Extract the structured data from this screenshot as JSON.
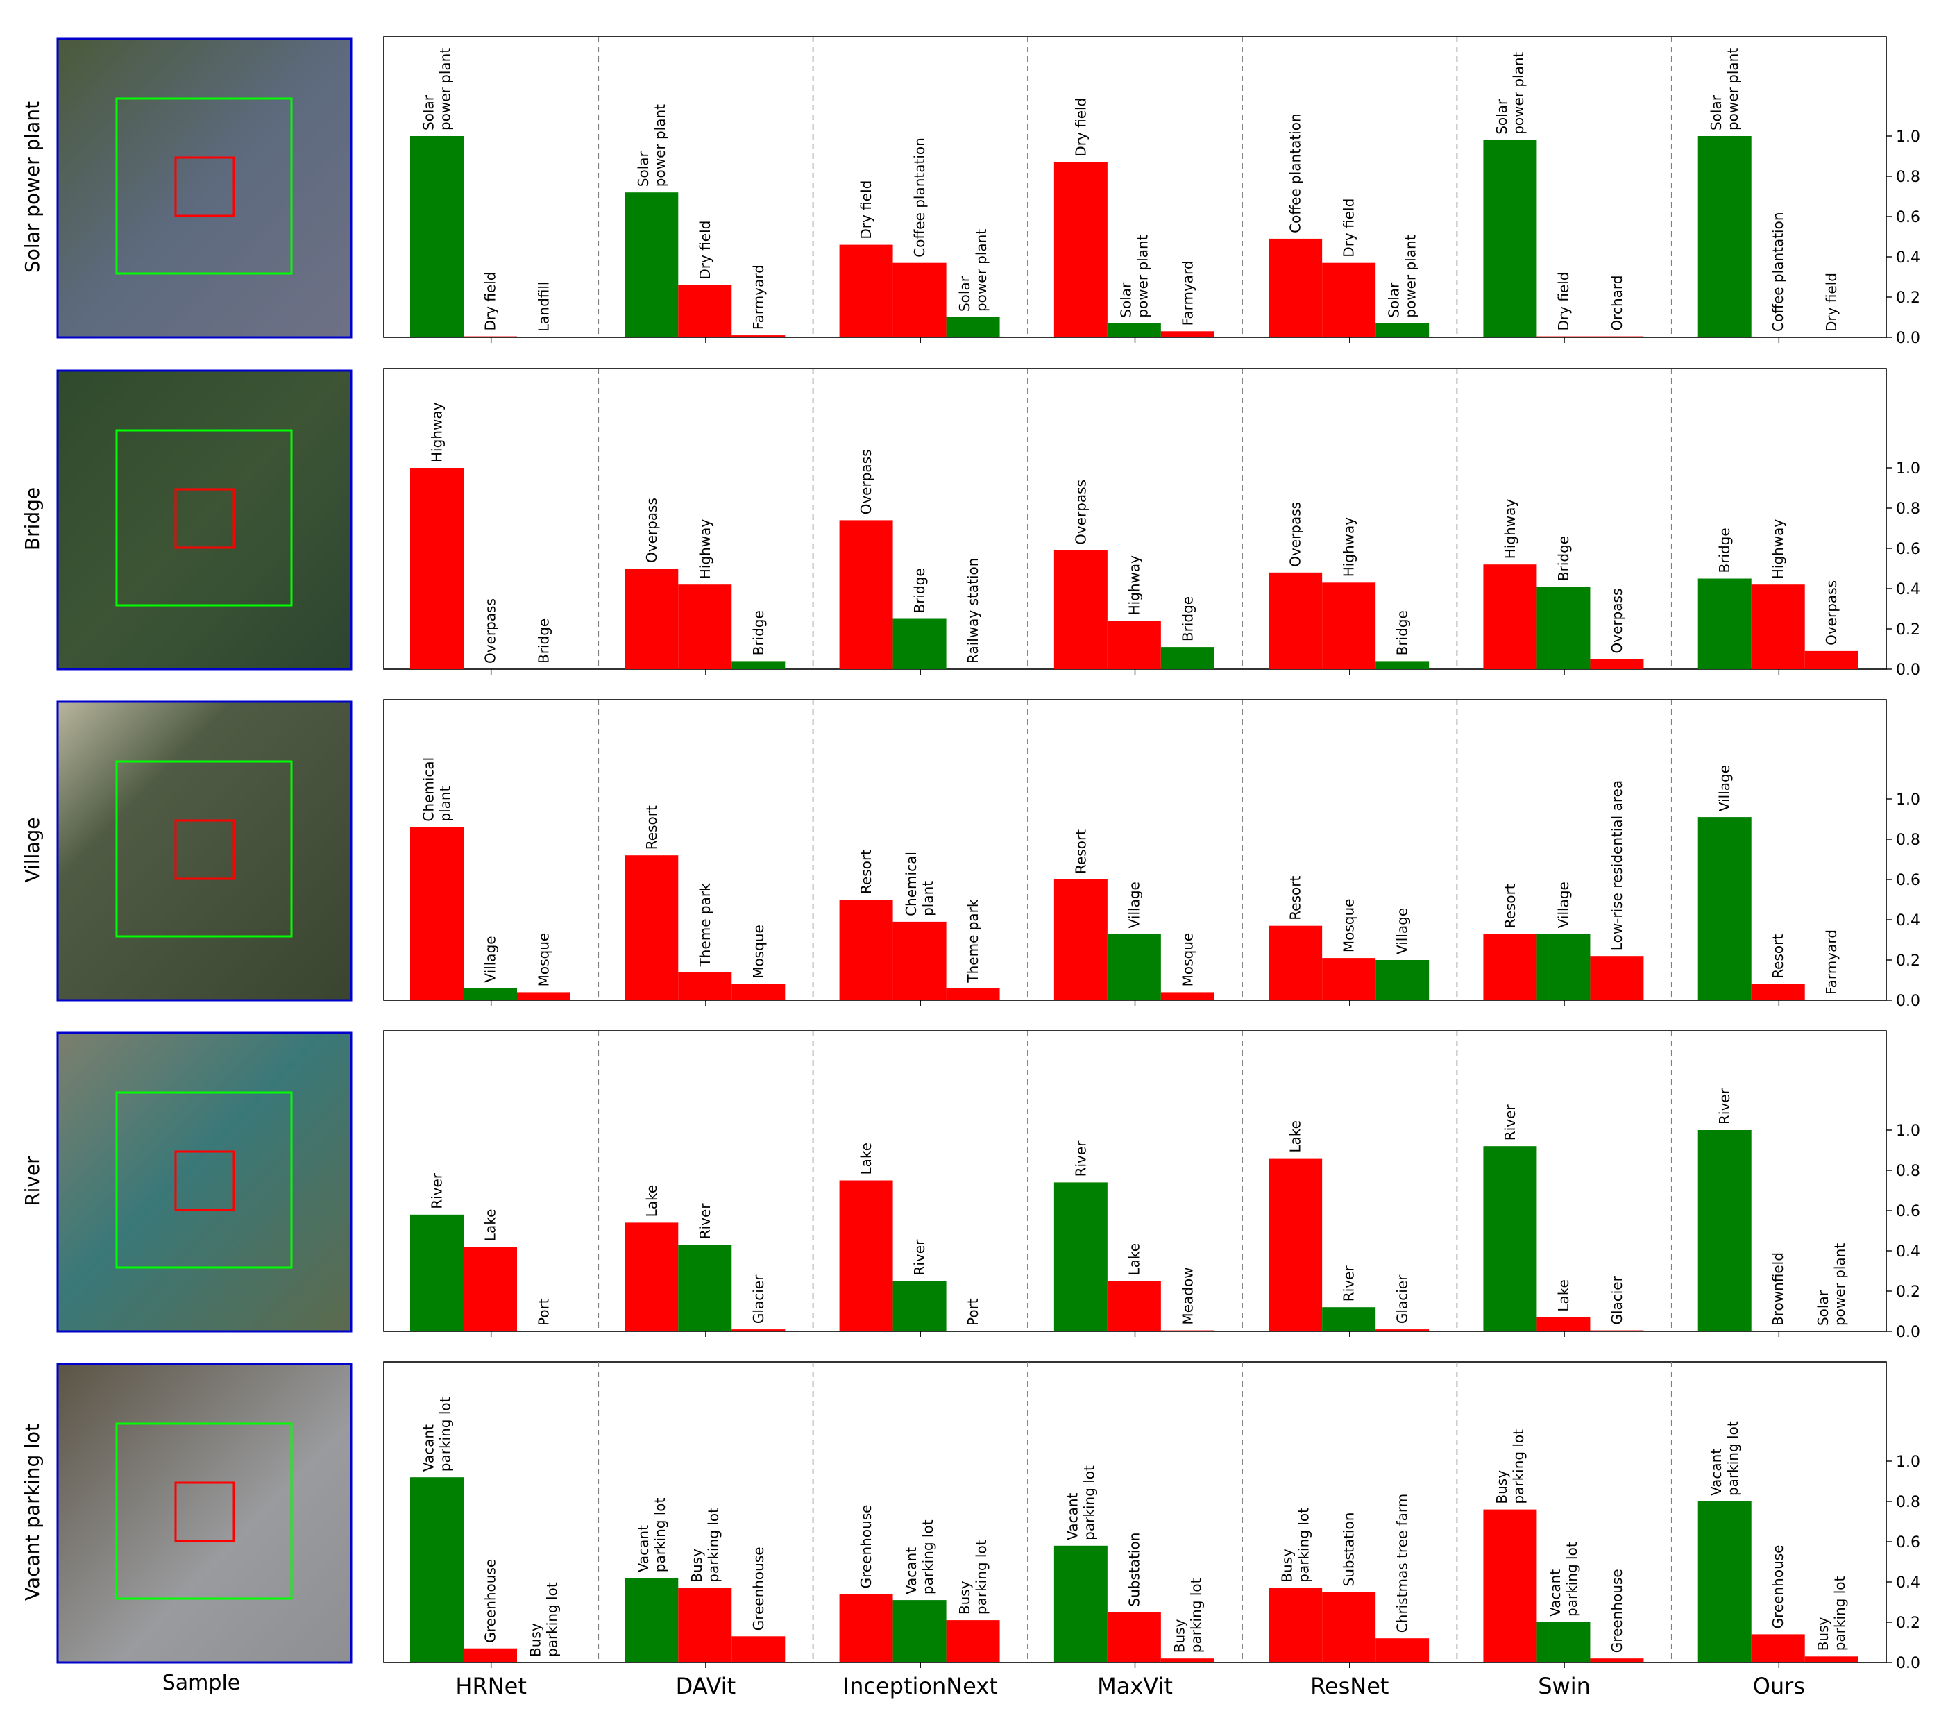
{
  "figure": {
    "sample_label": "Sample",
    "models": [
      "HRNet",
      "DAVit",
      "InceptionNext",
      "MaxVit",
      "ResNet",
      "Swin",
      "Ours"
    ],
    "colors": {
      "correct": "#008000",
      "incorrect": "#ff0000",
      "green_box": "#00ff00",
      "red_box": "#ff0000",
      "frame": "#0000cc"
    },
    "y_ticks": [
      "0.0",
      "0.2",
      "0.4",
      "0.6",
      "0.8",
      "1.0"
    ]
  },
  "chart_data": [
    {
      "type": "bar",
      "row_label": "Solar power plant",
      "ylim": [
        0,
        1.0
      ],
      "y_ticks": [
        0,
        0.2,
        0.4,
        0.6,
        0.8,
        1.0
      ],
      "panels": [
        {
          "model": "HRNet",
          "bars": [
            {
              "label": "Solar\npower plant",
              "value": 1.0,
              "correct": true
            },
            {
              "label": "Dry field",
              "value": 0.005,
              "correct": false
            },
            {
              "label": "Landfill",
              "value": 0.0,
              "correct": false
            }
          ]
        },
        {
          "model": "DAVit",
          "bars": [
            {
              "label": "Solar\npower plant",
              "value": 0.72,
              "correct": true
            },
            {
              "label": "Dry field",
              "value": 0.26,
              "correct": false
            },
            {
              "label": "Farmyard",
              "value": 0.01,
              "correct": false
            }
          ]
        },
        {
          "model": "InceptionNext",
          "bars": [
            {
              "label": "Dry field",
              "value": 0.46,
              "correct": false
            },
            {
              "label": "Coffee plantation",
              "value": 0.37,
              "correct": false
            },
            {
              "label": "Solar\npower plant",
              "value": 0.1,
              "correct": true
            }
          ]
        },
        {
          "model": "MaxVit",
          "bars": [
            {
              "label": "Dry field",
              "value": 0.87,
              "correct": false
            },
            {
              "label": "Solar\npower plant",
              "value": 0.07,
              "correct": true
            },
            {
              "label": "Farmyard",
              "value": 0.03,
              "correct": false
            }
          ]
        },
        {
          "model": "ResNet",
          "bars": [
            {
              "label": "Coffee plantation",
              "value": 0.49,
              "correct": false
            },
            {
              "label": "Dry field",
              "value": 0.37,
              "correct": false
            },
            {
              "label": "Solar\npower plant",
              "value": 0.07,
              "correct": true
            }
          ]
        },
        {
          "model": "Swin",
          "bars": [
            {
              "label": "Solar\npower plant",
              "value": 0.98,
              "correct": true
            },
            {
              "label": "Dry field",
              "value": 0.005,
              "correct": false
            },
            {
              "label": "Orchard",
              "value": 0.005,
              "correct": false
            }
          ]
        },
        {
          "model": "Ours",
          "bars": [
            {
              "label": "Solar\npower plant",
              "value": 1.0,
              "correct": true
            },
            {
              "label": "Coffee plantation",
              "value": 0.0,
              "correct": false
            },
            {
              "label": "Dry field",
              "value": 0.0,
              "correct": false
            }
          ]
        }
      ]
    },
    {
      "type": "bar",
      "row_label": "Bridge",
      "ylim": [
        0,
        1.0
      ],
      "y_ticks": [
        0,
        0.2,
        0.4,
        0.6,
        0.8,
        1.0
      ],
      "panels": [
        {
          "model": "HRNet",
          "bars": [
            {
              "label": "Highway",
              "value": 1.0,
              "correct": false
            },
            {
              "label": "Overpass",
              "value": 0.0,
              "correct": false
            },
            {
              "label": "Bridge",
              "value": 0.0,
              "correct": true
            }
          ]
        },
        {
          "model": "DAVit",
          "bars": [
            {
              "label": "Overpass",
              "value": 0.5,
              "correct": false
            },
            {
              "label": "Highway",
              "value": 0.42,
              "correct": false
            },
            {
              "label": "Bridge",
              "value": 0.04,
              "correct": true
            }
          ]
        },
        {
          "model": "InceptionNext",
          "bars": [
            {
              "label": "Overpass",
              "value": 0.74,
              "correct": false
            },
            {
              "label": "Bridge",
              "value": 0.25,
              "correct": true
            },
            {
              "label": "Railway station",
              "value": 0.0,
              "correct": false
            }
          ]
        },
        {
          "model": "MaxVit",
          "bars": [
            {
              "label": "Overpass",
              "value": 0.59,
              "correct": false
            },
            {
              "label": "Highway",
              "value": 0.24,
              "correct": false
            },
            {
              "label": "Bridge",
              "value": 0.11,
              "correct": true
            }
          ]
        },
        {
          "model": "ResNet",
          "bars": [
            {
              "label": "Overpass",
              "value": 0.48,
              "correct": false
            },
            {
              "label": "Highway",
              "value": 0.43,
              "correct": false
            },
            {
              "label": "Bridge",
              "value": 0.04,
              "correct": true
            }
          ]
        },
        {
          "model": "Swin",
          "bars": [
            {
              "label": "Highway",
              "value": 0.52,
              "correct": false
            },
            {
              "label": "Bridge",
              "value": 0.41,
              "correct": true
            },
            {
              "label": "Overpass",
              "value": 0.05,
              "correct": false
            }
          ]
        },
        {
          "model": "Ours",
          "bars": [
            {
              "label": "Bridge",
              "value": 0.45,
              "correct": true
            },
            {
              "label": "Highway",
              "value": 0.42,
              "correct": false
            },
            {
              "label": "Overpass",
              "value": 0.09,
              "correct": false
            }
          ]
        }
      ]
    },
    {
      "type": "bar",
      "row_label": "Village",
      "ylim": [
        0,
        1.0
      ],
      "y_ticks": [
        0,
        0.2,
        0.4,
        0.6,
        0.8,
        1.0
      ],
      "panels": [
        {
          "model": "HRNet",
          "bars": [
            {
              "label": "Chemical\nplant",
              "value": 0.86,
              "correct": false
            },
            {
              "label": "Village",
              "value": 0.06,
              "correct": true
            },
            {
              "label": "Mosque",
              "value": 0.04,
              "correct": false
            }
          ]
        },
        {
          "model": "DAVit",
          "bars": [
            {
              "label": "Resort",
              "value": 0.72,
              "correct": false
            },
            {
              "label": "Theme park",
              "value": 0.14,
              "correct": false
            },
            {
              "label": "Mosque",
              "value": 0.08,
              "correct": false
            }
          ]
        },
        {
          "model": "InceptionNext",
          "bars": [
            {
              "label": "Resort",
              "value": 0.5,
              "correct": false
            },
            {
              "label": "Chemical\nplant",
              "value": 0.39,
              "correct": false
            },
            {
              "label": "Theme park",
              "value": 0.06,
              "correct": false
            }
          ]
        },
        {
          "model": "MaxVit",
          "bars": [
            {
              "label": "Resort",
              "value": 0.6,
              "correct": false
            },
            {
              "label": "Village",
              "value": 0.33,
              "correct": true
            },
            {
              "label": "Mosque",
              "value": 0.04,
              "correct": false
            }
          ]
        },
        {
          "model": "ResNet",
          "bars": [
            {
              "label": "Resort",
              "value": 0.37,
              "correct": false
            },
            {
              "label": "Mosque",
              "value": 0.21,
              "correct": false
            },
            {
              "label": "Village",
              "value": 0.2,
              "correct": true
            }
          ]
        },
        {
          "model": "Swin",
          "bars": [
            {
              "label": "Resort",
              "value": 0.33,
              "correct": false
            },
            {
              "label": "Village",
              "value": 0.33,
              "correct": true
            },
            {
              "label": "Low-rise residential area",
              "value": 0.22,
              "correct": false
            }
          ]
        },
        {
          "model": "Ours",
          "bars": [
            {
              "label": "Village",
              "value": 0.91,
              "correct": true
            },
            {
              "label": "Resort",
              "value": 0.08,
              "correct": false
            },
            {
              "label": "Farmyard",
              "value": 0.0,
              "correct": false
            }
          ]
        }
      ]
    },
    {
      "type": "bar",
      "row_label": "River",
      "ylim": [
        0,
        1.0
      ],
      "y_ticks": [
        0,
        0.2,
        0.4,
        0.6,
        0.8,
        1.0
      ],
      "panels": [
        {
          "model": "HRNet",
          "bars": [
            {
              "label": "River",
              "value": 0.58,
              "correct": true
            },
            {
              "label": "Lake",
              "value": 0.42,
              "correct": false
            },
            {
              "label": "Port",
              "value": 0.0,
              "correct": false
            }
          ]
        },
        {
          "model": "DAVit",
          "bars": [
            {
              "label": "Lake",
              "value": 0.54,
              "correct": false
            },
            {
              "label": "River",
              "value": 0.43,
              "correct": true
            },
            {
              "label": "Glacier",
              "value": 0.01,
              "correct": false
            }
          ]
        },
        {
          "model": "InceptionNext",
          "bars": [
            {
              "label": "Lake",
              "value": 0.75,
              "correct": false
            },
            {
              "label": "River",
              "value": 0.25,
              "correct": true
            },
            {
              "label": "Port",
              "value": 0.0,
              "correct": false
            }
          ]
        },
        {
          "model": "MaxVit",
          "bars": [
            {
              "label": "River",
              "value": 0.74,
              "correct": true
            },
            {
              "label": "Lake",
              "value": 0.25,
              "correct": false
            },
            {
              "label": "Meadow",
              "value": 0.005,
              "correct": false
            }
          ]
        },
        {
          "model": "ResNet",
          "bars": [
            {
              "label": "Lake",
              "value": 0.86,
              "correct": false
            },
            {
              "label": "River",
              "value": 0.12,
              "correct": true
            },
            {
              "label": "Glacier",
              "value": 0.01,
              "correct": false
            }
          ]
        },
        {
          "model": "Swin",
          "bars": [
            {
              "label": "River",
              "value": 0.92,
              "correct": true
            },
            {
              "label": "Lake",
              "value": 0.07,
              "correct": false
            },
            {
              "label": "Glacier",
              "value": 0.005,
              "correct": false
            }
          ]
        },
        {
          "model": "Ours",
          "bars": [
            {
              "label": "River",
              "value": 1.0,
              "correct": true
            },
            {
              "label": "Brownfield",
              "value": 0.0,
              "correct": false
            },
            {
              "label": "Solar\npower plant",
              "value": 0.0,
              "correct": false
            }
          ]
        }
      ]
    },
    {
      "type": "bar",
      "row_label": "Vacant parking lot",
      "ylim": [
        0,
        1.0
      ],
      "y_ticks": [
        0,
        0.2,
        0.4,
        0.6,
        0.8,
        1.0
      ],
      "panels": [
        {
          "model": "HRNet",
          "bars": [
            {
              "label": "Vacant\nparking lot",
              "value": 0.92,
              "correct": true
            },
            {
              "label": "Greenhouse",
              "value": 0.07,
              "correct": false
            },
            {
              "label": "Busy\nparking lot",
              "value": 0.0,
              "correct": false
            }
          ]
        },
        {
          "model": "DAVit",
          "bars": [
            {
              "label": "Vacant\nparking lot",
              "value": 0.42,
              "correct": true
            },
            {
              "label": "Busy\nparking lot",
              "value": 0.37,
              "correct": false
            },
            {
              "label": "Greenhouse",
              "value": 0.13,
              "correct": false
            }
          ]
        },
        {
          "model": "InceptionNext",
          "bars": [
            {
              "label": "Greenhouse",
              "value": 0.34,
              "correct": false
            },
            {
              "label": "Vacant\nparking lot",
              "value": 0.31,
              "correct": true
            },
            {
              "label": "Busy\nparking lot",
              "value": 0.21,
              "correct": false
            }
          ]
        },
        {
          "model": "MaxVit",
          "bars": [
            {
              "label": "Vacant\nparking lot",
              "value": 0.58,
              "correct": true
            },
            {
              "label": "Substation",
              "value": 0.25,
              "correct": false
            },
            {
              "label": "Busy\nparking lot",
              "value": 0.02,
              "correct": false
            }
          ]
        },
        {
          "model": "ResNet",
          "bars": [
            {
              "label": "Busy\nparking lot",
              "value": 0.37,
              "correct": false
            },
            {
              "label": "Substation",
              "value": 0.35,
              "correct": false
            },
            {
              "label": "Christmas tree farm",
              "value": 0.12,
              "correct": false
            }
          ]
        },
        {
          "model": "Swin",
          "bars": [
            {
              "label": "Busy\nparking lot",
              "value": 0.76,
              "correct": false
            },
            {
              "label": "Vacant\nparking lot",
              "value": 0.2,
              "correct": true
            },
            {
              "label": "Greenhouse",
              "value": 0.02,
              "correct": false
            }
          ]
        },
        {
          "model": "Ours",
          "bars": [
            {
              "label": "Vacant\nparking lot",
              "value": 0.8,
              "correct": true
            },
            {
              "label": "Greenhouse",
              "value": 0.14,
              "correct": false
            },
            {
              "label": "Busy\nparking lot",
              "value": 0.03,
              "correct": false
            }
          ]
        }
      ]
    }
  ]
}
